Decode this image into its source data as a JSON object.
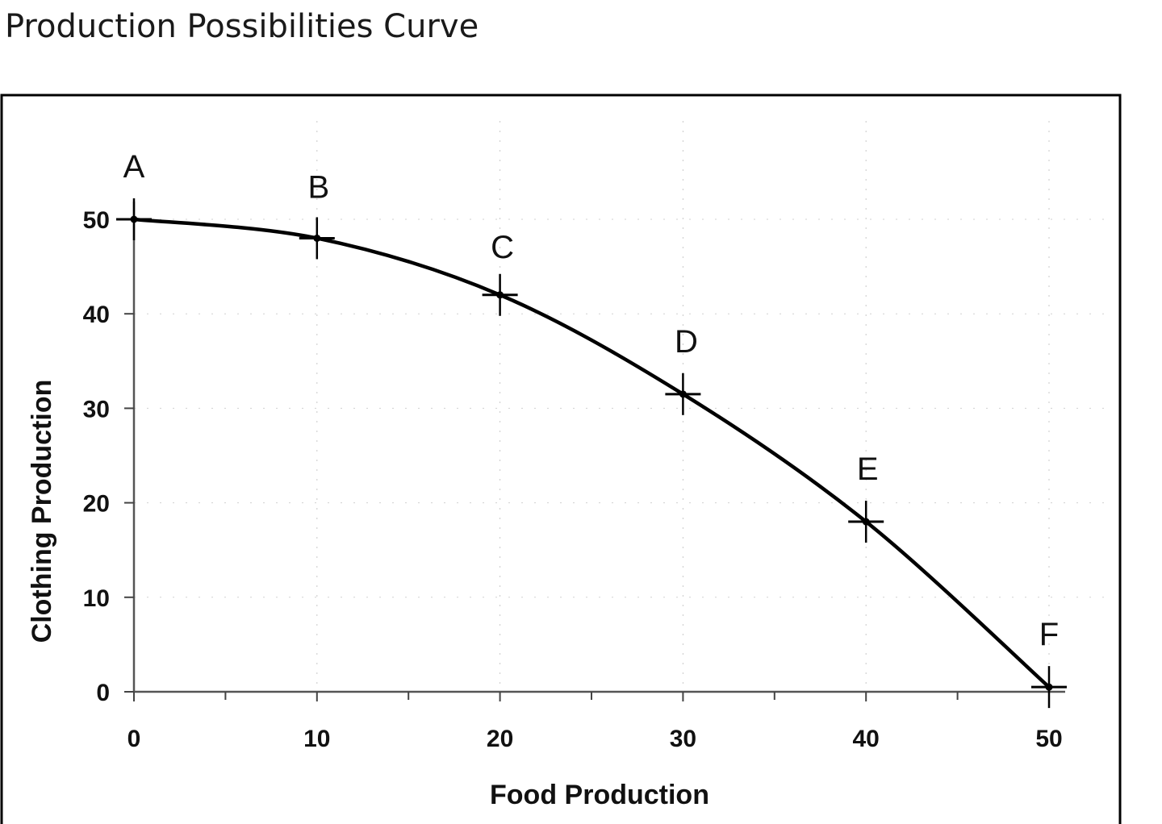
{
  "page": {
    "title": "Production Possibilities Curve"
  },
  "chart_data": {
    "type": "line",
    "title": "",
    "xlabel": "Food Production",
    "ylabel": "Clothing Production",
    "xlim": [
      0,
      50
    ],
    "ylim": [
      0,
      50
    ],
    "x_ticks": [
      0,
      10,
      20,
      30,
      40,
      50
    ],
    "y_ticks": [
      0,
      10,
      20,
      30,
      40,
      50
    ],
    "grid": false,
    "legend": "none",
    "line_color": "#000000",
    "series": [
      {
        "points": [
          {
            "label": "A",
            "x": 0,
            "y": 50
          },
          {
            "label": "B",
            "x": 10,
            "y": 48
          },
          {
            "label": "C",
            "x": 20,
            "y": 42
          },
          {
            "label": "D",
            "x": 30,
            "y": 31.5
          },
          {
            "label": "E",
            "x": 40,
            "y": 18
          },
          {
            "label": "F",
            "x": 50,
            "y": 0.5
          }
        ]
      }
    ]
  }
}
